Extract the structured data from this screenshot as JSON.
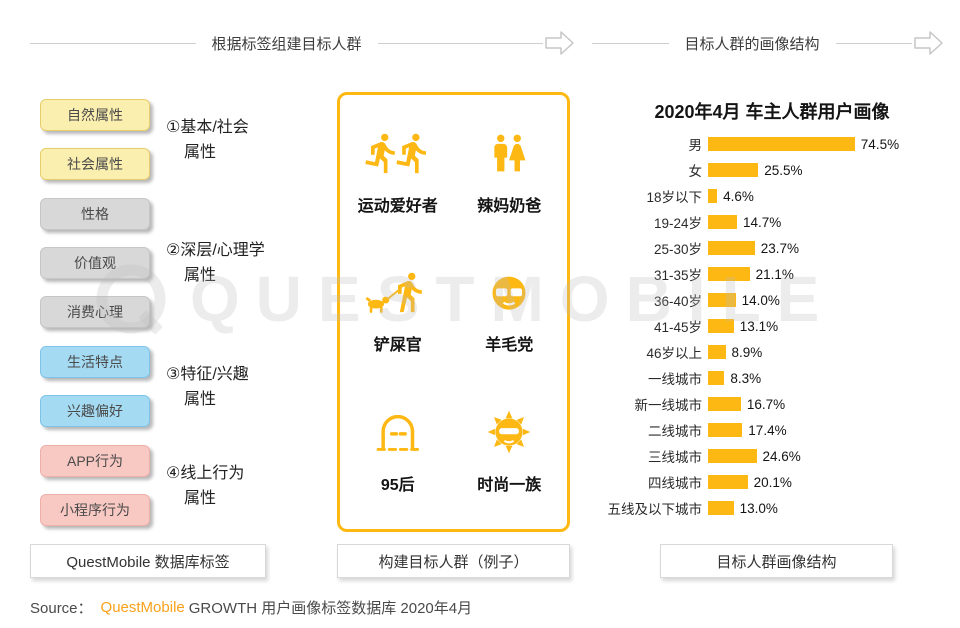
{
  "headers": {
    "left": "根据标签组建目标人群",
    "right": "目标人群的画像结构"
  },
  "tag_panel": {
    "groups": [
      {
        "annotation_lines": [
          "①基本/社会",
          "属性"
        ],
        "colors": {
          "bg": "#FBEFAF",
          "border": "#E8CE6B"
        },
        "tags": [
          "自然属性",
          "社会属性"
        ]
      },
      {
        "annotation_lines": [
          "②深层/心理学",
          "属性"
        ],
        "colors": {
          "bg": "#D8D8D8",
          "border": "#C6C6C6"
        },
        "tags": [
          "性格",
          "价值观",
          "消费心理"
        ]
      },
      {
        "annotation_lines": [
          "③特征/兴趣",
          "属性"
        ],
        "colors": {
          "bg": "#A4DBF3",
          "border": "#7FC4E8"
        },
        "tags": [
          "生活特点",
          "兴趣偏好"
        ]
      },
      {
        "annotation_lines": [
          "④线上行为",
          "属性"
        ],
        "colors": {
          "bg": "#F8C8C3",
          "border": "#EFAFA9"
        },
        "tags": [
          "APP行为",
          "小程序行为"
        ]
      }
    ],
    "caption": "QuestMobile 数据库标签"
  },
  "persona_box": {
    "items": [
      {
        "label": "运动爱好者",
        "icon": "runners-icon"
      },
      {
        "label": "辣妈奶爸",
        "icon": "family-icon"
      },
      {
        "label": "铲屎官",
        "icon": "dog-walker-icon"
      },
      {
        "label": "羊毛党",
        "icon": "bargain-hunter-icon"
      },
      {
        "label": "95后",
        "icon": "hoodie-icon"
      },
      {
        "label": "时尚一族",
        "icon": "fashion-icon"
      }
    ],
    "border_color": "#FDB813",
    "caption": "构建目标人群（例子）"
  },
  "chart_panel": {
    "caption": "目标人群画像结构"
  },
  "chart_data": {
    "type": "bar",
    "orientation": "horizontal",
    "title": "2020年4月 车主人群用户画像",
    "categories": [
      "男",
      "女",
      "18岁以下",
      "19-24岁",
      "25-30岁",
      "31-35岁",
      "36-40岁",
      "41-45岁",
      "46岁以上",
      "一线城市",
      "新一线城市",
      "二线城市",
      "三线城市",
      "四线城市",
      "五线及以下城市"
    ],
    "values": [
      74.5,
      25.5,
      4.6,
      14.7,
      23.7,
      21.1,
      14.0,
      13.1,
      8.9,
      8.3,
      16.7,
      17.4,
      24.6,
      20.1,
      13.0
    ],
    "unit": "%",
    "xlim": [
      0,
      80
    ],
    "bar_color": "#FDB813",
    "value_labels": true,
    "grid": false,
    "legend": false
  },
  "footer": {
    "prefix": "Source：",
    "brand": "QuestMobile",
    "suffix": "GROWTH 用户画像标签数据库 2020年4月"
  },
  "watermark": {
    "text": "QUESTMOBILE"
  },
  "colors": {
    "brand_gold": "#FDB813",
    "brand_orange": "#F9A11B",
    "header_line": "#CFCFCF"
  }
}
